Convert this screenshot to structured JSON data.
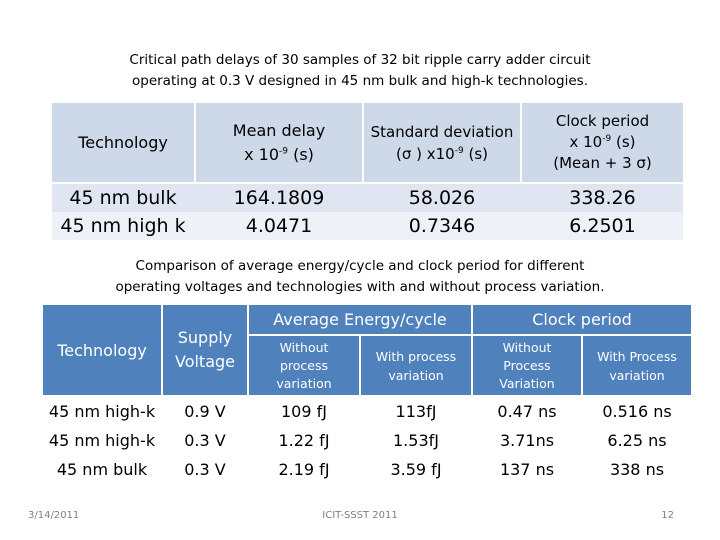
{
  "caption1": {
    "line1": "Critical path delays of 30 samples of 32 bit ripple carry adder circuit",
    "line2": "operating at 0.3 V designed in 45 nm bulk and high-k technologies."
  },
  "table1": {
    "headers": {
      "technology": "Technology",
      "mean_l1": "Mean delay",
      "mean_l2_pre": "x 10",
      "mean_exp": "-9",
      "mean_l2_post": " (s)",
      "std_l1": "Standard deviation",
      "std_l2_pre": "(σ ) x10",
      "std_exp": "-9",
      "std_l2_post": " (s)",
      "clk_l1": "Clock period",
      "clk_l2_pre": "x 10",
      "clk_exp": "-9",
      "clk_l2_post": " (s)",
      "clk_l3": "(Mean + 3 σ)"
    },
    "rows": [
      {
        "tech": "45 nm bulk",
        "mean": "164.1809",
        "std": "58.026",
        "clock": "338.26"
      },
      {
        "tech": "45 nm high k",
        "mean": "4.0471",
        "std": "0.7346",
        "clock": "6.2501"
      }
    ]
  },
  "caption2": {
    "line1": "Comparison of average energy/cycle and clock period for different",
    "line2": "operating voltages and technologies with and without process variation."
  },
  "table2": {
    "headers": {
      "technology": "Technology",
      "supply_l1": "Supply",
      "supply_l2": "Voltage",
      "energy_group": "Average Energy/cycle",
      "clock_group": "Clock period",
      "e_without_l1": "Without",
      "e_without_l2": "process",
      "e_without_l3": "variation",
      "e_with_l1": "With process",
      "e_with_l2": "variation",
      "c_without_l1": "Without",
      "c_without_l2": "Process",
      "c_without_l3": "Variation",
      "c_with_l1": "With Process",
      "c_with_l2": "variation"
    },
    "rows": [
      {
        "tech": "45 nm high-k",
        "voltage": "0.9 V",
        "e_without": "109 fJ",
        "e_with": "113fJ",
        "c_without": "0.47 ns",
        "c_with": "0.516 ns"
      },
      {
        "tech": "45 nm high-k",
        "voltage": "0.3 V",
        "e_without": "1.22 fJ",
        "e_with": "1.53fJ",
        "c_without": "3.71ns",
        "c_with": "6.25 ns"
      },
      {
        "tech": "45 nm bulk",
        "voltage": "0.3 V",
        "e_without": "2.19 fJ",
        "e_with": "3.59 fJ",
        "c_without": "137 ns",
        "c_with": "338 ns"
      }
    ]
  },
  "footer": {
    "date": "3/14/2011",
    "center": "ICIT-SSST 2011",
    "page": "12"
  },
  "colors": {
    "header_blue": "#4f81bd",
    "table1_header": "#cdd8e9",
    "row_light": "#eef1f8"
  }
}
